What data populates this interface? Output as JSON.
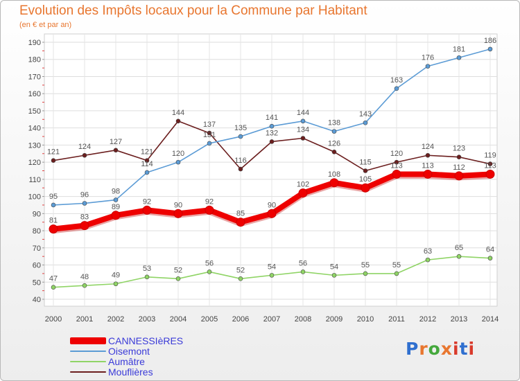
{
  "title": "Evolution des Impôts locaux pour la Commune par Habitant",
  "subtitle": "(en € et par an)",
  "logo": {
    "text": "Proxiti",
    "colors": [
      "#2f6fcf",
      "#e8762f",
      "#44a83c",
      "#e8762f",
      "#d93a2b",
      "#2f6fcf",
      "#d93a2b"
    ]
  },
  "chart_data": {
    "type": "line",
    "x": [
      "2000",
      "2001",
      "2002",
      "2003",
      "2004",
      "2005",
      "2006",
      "2007",
      "2008",
      "2009",
      "2010",
      "2011",
      "2012",
      "2013",
      "2014"
    ],
    "ylim": [
      40,
      190
    ],
    "yticks": [
      "40",
      "50",
      "60",
      "70",
      "80",
      "90",
      "100",
      "110",
      "120",
      "130",
      "140",
      "150",
      "160",
      "170",
      "180",
      "190"
    ],
    "grid": true,
    "legend_position": "bottom-left",
    "series": [
      {
        "name": "Mouflières",
        "color": "#6b1e1e",
        "values": [
          121,
          124,
          127,
          121,
          144,
          137,
          116,
          132,
          134,
          126,
          115,
          120,
          124,
          123,
          119
        ],
        "labels": [
          "121",
          "124",
          "127",
          "121",
          "144",
          "137",
          "116",
          "132",
          "134",
          "126",
          "115",
          "120",
          "124",
          "123",
          "119"
        ]
      },
      {
        "name": "Oisemont",
        "color": "#5b9bd5",
        "values": [
          95,
          96,
          98,
          114,
          120,
          131,
          135,
          141,
          144,
          138,
          143,
          163,
          176,
          181,
          186
        ],
        "labels": [
          "95",
          "96",
          "98",
          "114",
          "120",
          "131",
          "135",
          "141",
          "144",
          "138",
          "143",
          "163",
          "176",
          "181",
          "186"
        ]
      },
      {
        "name": "Aumâtre",
        "color": "#8fd465",
        "values": [
          47,
          48,
          49,
          53,
          52,
          56,
          52,
          54,
          56,
          54,
          55,
          55,
          63,
          65,
          64
        ],
        "labels": [
          "47",
          "48",
          "49",
          "53",
          "52",
          "56",
          "52",
          "54",
          "56",
          "54",
          "55",
          "55",
          "63",
          "65",
          "64"
        ]
      },
      {
        "name": "CANNESSIèRES",
        "color": "#ee0000",
        "values": [
          81,
          83,
          89,
          92,
          90,
          92,
          85,
          90,
          102,
          108,
          105,
          113,
          113,
          112,
          113
        ],
        "labels": [
          "81",
          "83",
          "89",
          "92",
          "90",
          "92",
          "85",
          "90",
          "102",
          "108",
          "105",
          "113",
          "113",
          "112",
          "113"
        ]
      }
    ],
    "legend": [
      {
        "name": "CANNESSIèRES",
        "color": "#ee0000"
      },
      {
        "name": "Oisemont",
        "color": "#5b9bd5"
      },
      {
        "name": "Aumâtre",
        "color": "#8fd465"
      },
      {
        "name": "Mouflières",
        "color": "#6b1e1e"
      }
    ]
  }
}
